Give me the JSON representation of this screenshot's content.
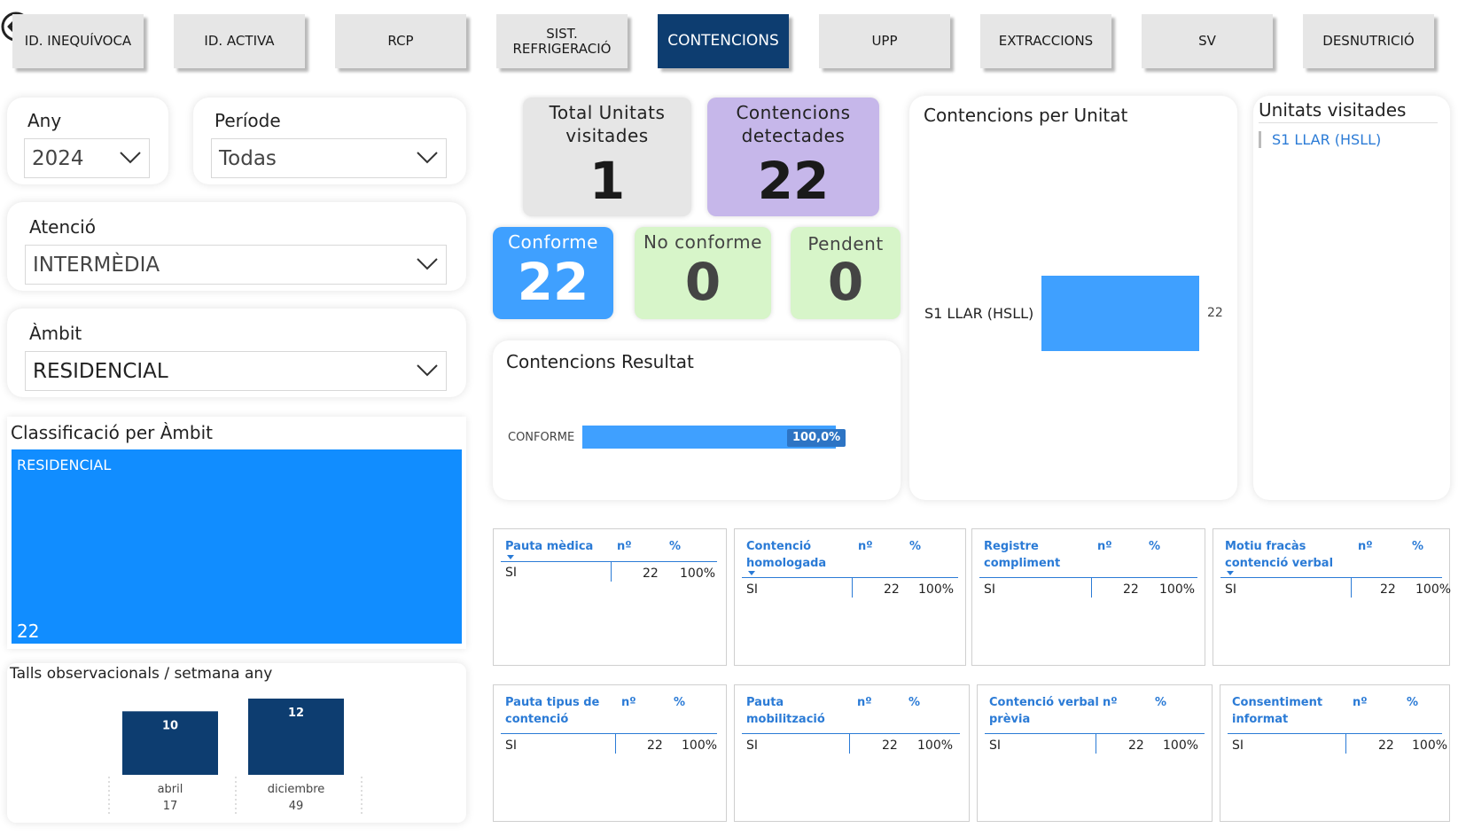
{
  "tabs": [
    {
      "label": "ID. INEQUÍVOCA",
      "active": false
    },
    {
      "label": "ID. ACTIVA",
      "active": false
    },
    {
      "label": "RCP",
      "active": false
    },
    {
      "label": "SIST.\nREFRIGERACIÓ",
      "active": false
    },
    {
      "label": "CONTENCIONS",
      "active": true
    },
    {
      "label": "UPP",
      "active": false
    },
    {
      "label": "EXTRACCIONS",
      "active": false
    },
    {
      "label": "SV",
      "active": false
    },
    {
      "label": "DESNUTRICIÓ",
      "active": false
    }
  ],
  "filters": {
    "any": {
      "label": "Any",
      "value": "2024"
    },
    "periode": {
      "label": "Període",
      "value": "Todas"
    },
    "atencio": {
      "label": "Atenció",
      "value": "INTERMÈDIA"
    },
    "ambit": {
      "label": "Àmbit",
      "value": "RESIDENCIAL"
    }
  },
  "kpis": {
    "total_unitats": {
      "label": "Total Unitats visitades",
      "value": "1"
    },
    "contencions": {
      "label": "Contencions detectades",
      "value": "22"
    },
    "conforme": {
      "label": "Conforme",
      "value": "22"
    },
    "no_conforme": {
      "label": "No conforme",
      "value": "0"
    },
    "pendent": {
      "label": "Pendent",
      "value": "0"
    }
  },
  "classificacio": {
    "title": "Classificació per Àmbit",
    "label": "RESIDENCIAL",
    "value": "22"
  },
  "resultat": {
    "title": "Contencions Resultat",
    "category": "CONFORME",
    "value_label": "100,0%"
  },
  "per_unitat": {
    "title": "Contencions per Unitat",
    "category": "S1 LLAR (HSLL)",
    "value": "22"
  },
  "unitats": {
    "title": "Unitats visitades",
    "items": [
      "S1 LLAR (HSLL)"
    ]
  },
  "talls": {
    "title": "Talls observacionals / setmana any"
  },
  "chart_data": [
    {
      "type": "bar",
      "title": "Contencions Resultat",
      "categories": [
        "CONFORME"
      ],
      "values": [
        100.0
      ],
      "data_labels": [
        "100,0%"
      ]
    },
    {
      "type": "bar",
      "title": "Contencions per Unitat",
      "categories": [
        "S1 LLAR (HSLL)"
      ],
      "values": [
        22
      ]
    },
    {
      "type": "bar",
      "title": "Talls observacionals / setmana any",
      "categories": [
        "abril\n17",
        "diciembre\n49"
      ],
      "values": [
        10,
        12
      ]
    }
  ],
  "tables": [
    {
      "header": "Pauta mèdica",
      "col_n": "nº",
      "col_pct": "%",
      "row_label": "SI",
      "n": "22",
      "pct": "100%"
    },
    {
      "header": "Contenció homologada",
      "col_n": "nº",
      "col_pct": "%",
      "row_label": "SI",
      "n": "22",
      "pct": "100%"
    },
    {
      "header": "Registre compliment",
      "col_n": "nº",
      "col_pct": "%",
      "row_label": "SI",
      "n": "22",
      "pct": "100%"
    },
    {
      "header": "Motiu fracàs contenció verbal",
      "col_n": "nº",
      "col_pct": "%",
      "row_label": "SI",
      "n": "22",
      "pct": "100%"
    },
    {
      "header": "Pauta tipus de contenció",
      "col_n": "nº",
      "col_pct": "%",
      "row_label": "SI",
      "n": "22",
      "pct": "100%"
    },
    {
      "header": "Pauta mobilització",
      "col_n": "nº",
      "col_pct": "%",
      "row_label": "SI",
      "n": "22",
      "pct": "100%"
    },
    {
      "header": "Contenció verbal prèvia",
      "col_n": "nº",
      "col_pct": "%",
      "row_label": "SI",
      "n": "22",
      "pct": "100%"
    },
    {
      "header": "Consentiment informat",
      "col_n": "nº",
      "col_pct": "%",
      "row_label": "SI",
      "n": "22",
      "pct": "100%"
    }
  ],
  "colors": {
    "accent_dark": "#0d3d70",
    "bar_blue": "#3fa0ff",
    "treemap_blue": "#118dff",
    "green_tile": "#d7f5c9",
    "purple_tile": "#c6b7ea"
  }
}
